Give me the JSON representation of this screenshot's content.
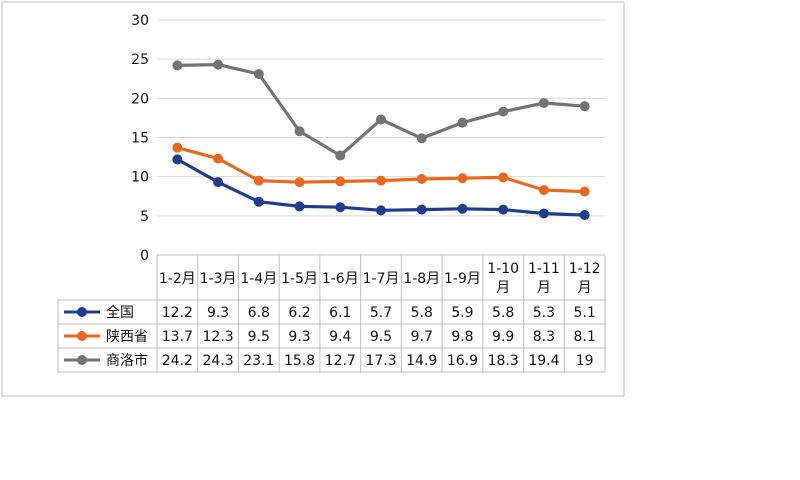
{
  "chart_data": {
    "type": "line",
    "categories": [
      "1-2月",
      "1-3月",
      "1-4月",
      "1-5月",
      "1-6月",
      "1-7月",
      "1-8月",
      "1-9月",
      "1-10月",
      "1-11月",
      "1-12月"
    ],
    "series": [
      {
        "name": "全国",
        "values": [
          12.2,
          9.3,
          6.8,
          6.2,
          6.1,
          5.7,
          5.8,
          5.9,
          5.8,
          5.3,
          5.1
        ],
        "color": "#1f3d8f"
      },
      {
        "name": "陕西省",
        "values": [
          13.7,
          12.3,
          9.5,
          9.3,
          9.4,
          9.5,
          9.7,
          9.8,
          9.9,
          8.3,
          8.1
        ],
        "color": "#e8691e"
      },
      {
        "name": "商洛市",
        "values": [
          24.2,
          24.3,
          23.1,
          15.8,
          12.7,
          17.3,
          14.9,
          16.9,
          18.3,
          19.4,
          19
        ],
        "color": "#737373"
      }
    ],
    "y_ticks": [
      "30",
      "25",
      "20",
      "15",
      "10",
      "5",
      "0"
    ],
    "ylim": [
      0,
      30
    ],
    "grid": true,
    "legend": "data table"
  }
}
